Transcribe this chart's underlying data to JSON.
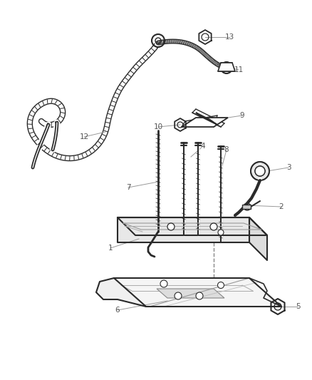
{
  "bg_color": "#ffffff",
  "line_color": "#2a2a2a",
  "label_color": "#555555",
  "leader_color": "#999999",
  "fig_width": 4.38,
  "fig_height": 5.33,
  "dpi": 100
}
